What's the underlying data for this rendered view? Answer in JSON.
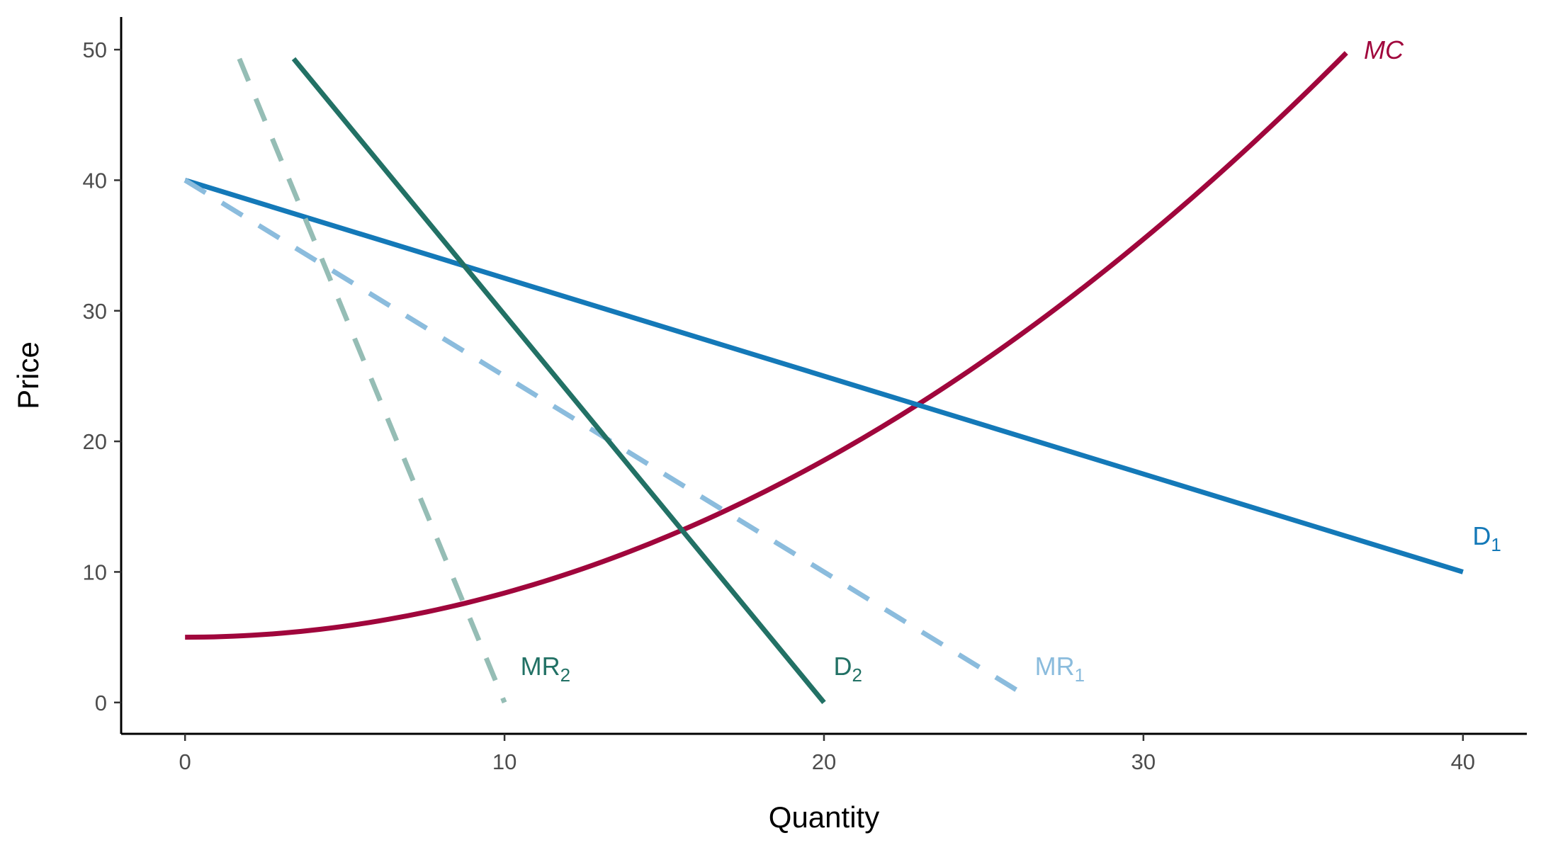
{
  "chart_data": {
    "type": "line",
    "xlabel": "Quantity",
    "ylabel": "Price",
    "xlim": [
      -2,
      42
    ],
    "ylim": [
      -2.4,
      52.5
    ],
    "x_ticks": [
      0,
      10,
      20,
      30,
      40
    ],
    "y_ticks": [
      0,
      10,
      20,
      30,
      40,
      50
    ],
    "grid": false,
    "legend": "none",
    "series": [
      {
        "key": "MC",
        "label": "MC",
        "label_sub": "",
        "italic": true,
        "function": "quadratic",
        "coefficients": {
          "intercept": 5,
          "slope": 0,
          "quadratic": 0.03387
        },
        "x_range": [
          0,
          36.35
        ],
        "style": "solid",
        "color": "#A0063C",
        "opacity": 1,
        "label_at": [
          36.9,
          50
        ]
      },
      {
        "key": "D1",
        "label": "D",
        "label_sub": "1",
        "italic": false,
        "function": "linear",
        "coefficients": {
          "intercept": 40,
          "slope": -0.75
        },
        "x_range": [
          0,
          40
        ],
        "style": "solid",
        "color": "#1479B8",
        "opacity": 1,
        "label_at": [
          40.3,
          12.8
        ]
      },
      {
        "key": "MR1",
        "label": "MR",
        "label_sub": "1",
        "italic": false,
        "function": "linear",
        "coefficients": {
          "intercept": 40,
          "slope": -1.5
        },
        "x_range": [
          0,
          26.3
        ],
        "style": "dashed",
        "color": "#8BBCDD",
        "opacity": 1,
        "label_at": [
          26.6,
          2.8
        ]
      },
      {
        "key": "D2",
        "label": "D",
        "label_sub": "2",
        "italic": false,
        "function": "linear",
        "coefficients": {
          "intercept": 59.4,
          "slope": -2.97
        },
        "x_range": [
          3.4,
          20
        ],
        "style": "solid",
        "color": "#227165",
        "opacity": 1,
        "label_at": [
          20.3,
          2.8
        ]
      },
      {
        "key": "MR2",
        "label": "MR",
        "label_sub": "2",
        "italic": false,
        "function": "linear",
        "coefficients": {
          "intercept": 59.4,
          "slope": -5.94
        },
        "x_range": [
          1.7,
          10
        ],
        "style": "dashed",
        "color": "#95BDB5",
        "opacity": 1,
        "label_at": [
          10.5,
          2.8
        ],
        "label_color": "#227165"
      }
    ]
  }
}
